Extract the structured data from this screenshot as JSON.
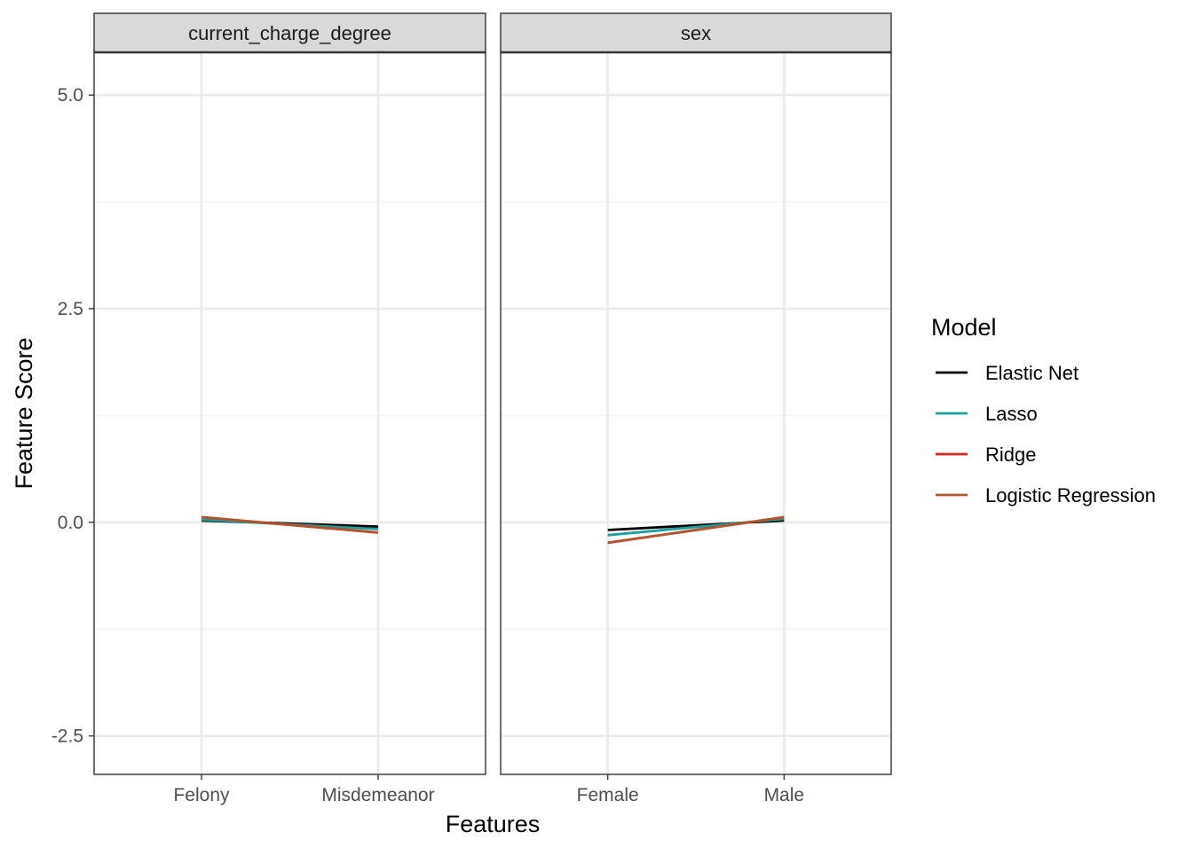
{
  "chart_data": {
    "type": "line",
    "xlabel": "Features",
    "ylabel": "Feature Score",
    "ylim": [
      -2.95,
      5.5
    ],
    "y_ticks": [
      -2.5,
      0,
      2.5,
      5
    ],
    "y_tick_labels": [
      "-2.5",
      "0.0",
      "2.5",
      "5.0"
    ],
    "grid": true,
    "legend": {
      "title": "Model",
      "placement": "right",
      "entries": [
        {
          "name": "Elastic Net",
          "color": "#000000"
        },
        {
          "name": "Lasso",
          "color": "#1a9e9e"
        },
        {
          "name": "Ridge",
          "color": "#d7261e"
        },
        {
          "name": "Logistic Regression",
          "color": "#b5542a"
        }
      ]
    },
    "panels": [
      {
        "strip": "current_charge_degree",
        "categories": [
          "Felony",
          "Misdemeanor"
        ],
        "series": [
          {
            "name": "Elastic Net",
            "values": [
              0.02,
              -0.05
            ]
          },
          {
            "name": "Lasso",
            "values": [
              0.03,
              -0.08
            ]
          },
          {
            "name": "Ridge",
            "values": [
              0.06,
              -0.12
            ]
          },
          {
            "name": "Logistic Regression",
            "values": [
              0.06,
              -0.12
            ]
          }
        ]
      },
      {
        "strip": "sex",
        "categories": [
          "Female",
          "Male"
        ],
        "series": [
          {
            "name": "Elastic Net",
            "values": [
              -0.09,
              0.02
            ]
          },
          {
            "name": "Lasso",
            "values": [
              -0.15,
              0.04
            ]
          },
          {
            "name": "Ridge",
            "values": [
              -0.24,
              0.06
            ]
          },
          {
            "name": "Logistic Regression",
            "values": [
              -0.24,
              0.06
            ]
          }
        ]
      }
    ]
  }
}
